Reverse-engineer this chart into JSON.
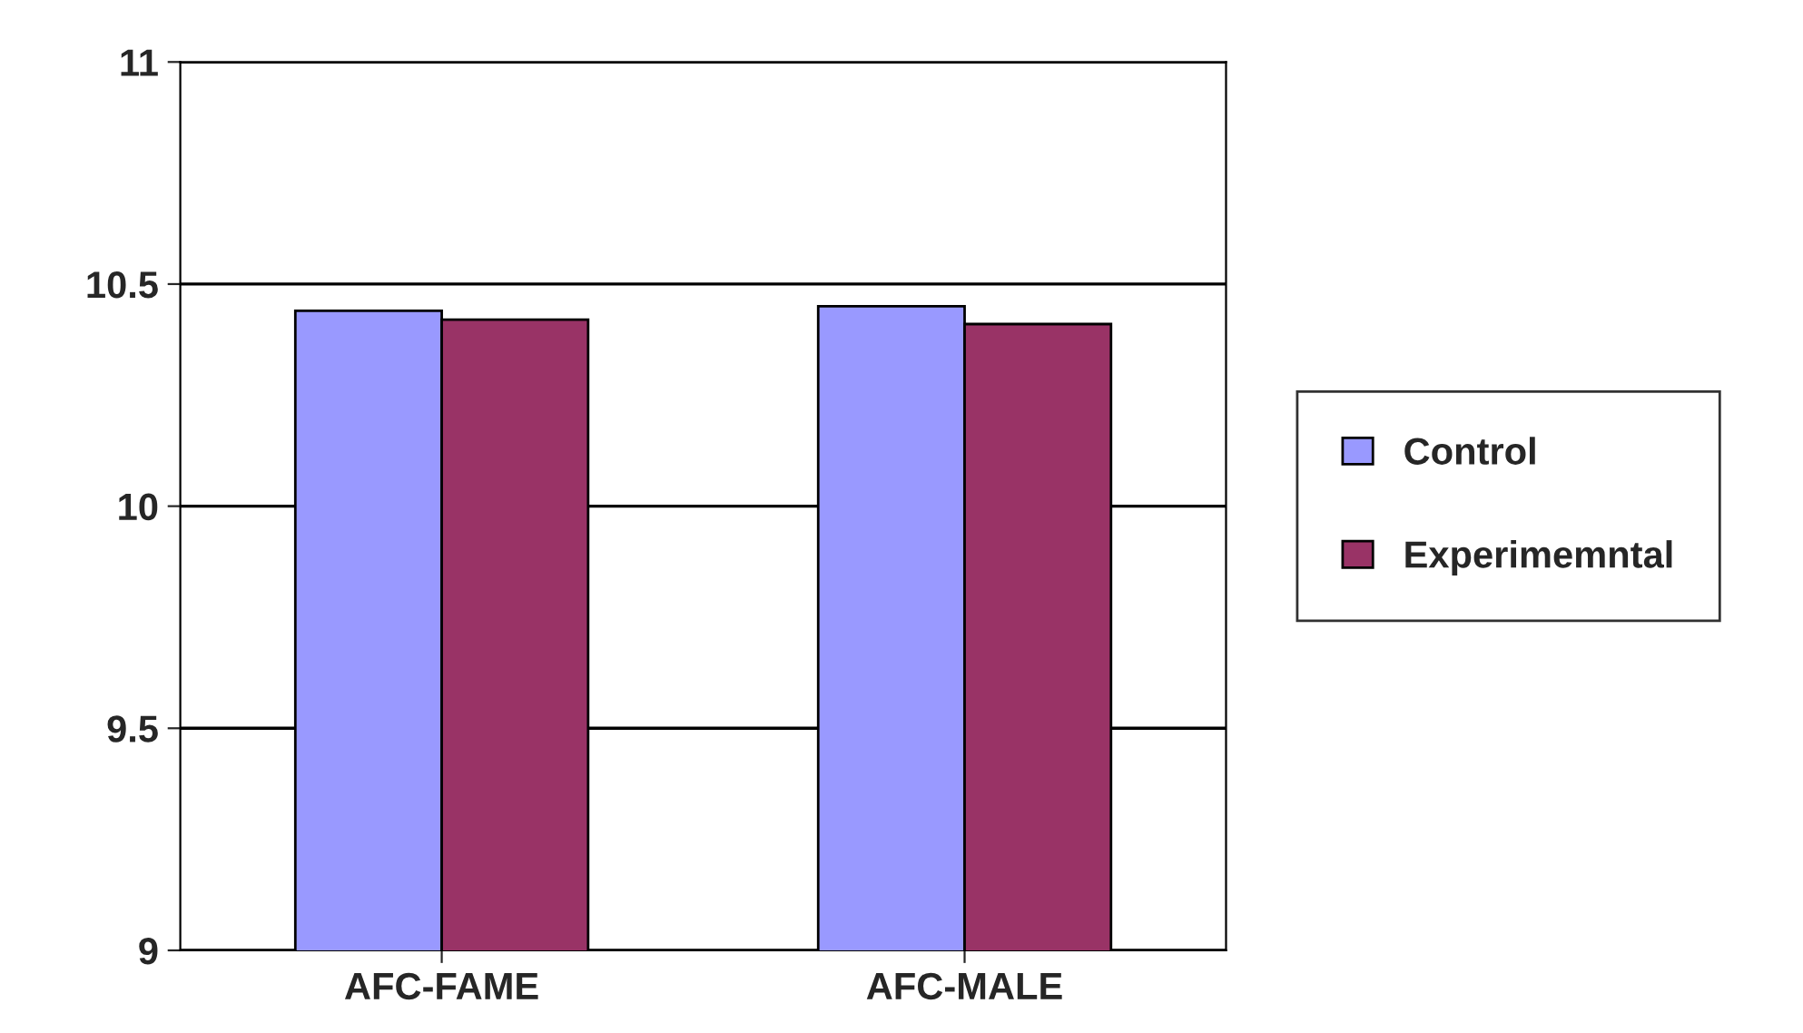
{
  "chart_data": {
    "type": "bar",
    "categories": [
      "AFC-FAME",
      "AFC-MALE"
    ],
    "series": [
      {
        "name": "Control",
        "color": "#9999ff",
        "values": [
          10.44,
          10.45
        ]
      },
      {
        "name": "Experimemntal",
        "color": "#993366",
        "values": [
          10.42,
          10.41
        ]
      }
    ],
    "ylim": [
      9,
      11
    ],
    "yticks": [
      9,
      9.5,
      10,
      10.5,
      11
    ],
    "grid": "y",
    "legend": "right"
  }
}
